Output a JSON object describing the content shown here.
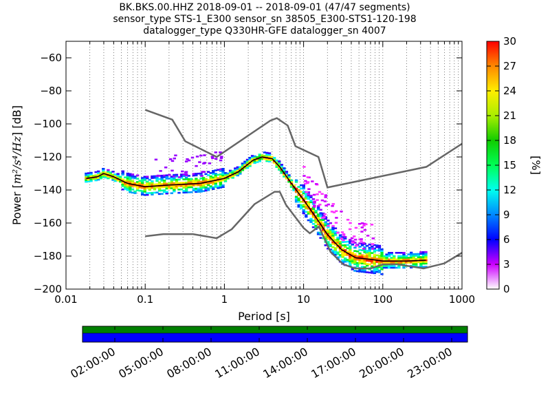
{
  "title_lines": [
    "BK.BKS.00.HHZ   2018-09-01 -- 2018-09-01  (47/47 segments)",
    "sensor_type STS-1_E300 sensor_sn 38505_E300-STS1-120-198",
    "datalogger_type Q330HR-GFE datalogger_sn 4007"
  ],
  "chart_data": {
    "type": "heatmap",
    "xlabel": "Period [s]",
    "ylabel": "Power [m²/s⁴/Hz] [dB]",
    "ylabel_parts": {
      "prefix": "Power [",
      "unit": "m²/s⁴/Hz",
      "suffix": "] [dB]"
    },
    "x_scale": "log",
    "xlim": [
      0.01,
      1000
    ],
    "ylim": [
      -200,
      -50
    ],
    "x_ticks": [
      {
        "value": 0.01,
        "label": "0.01"
      },
      {
        "value": 0.1,
        "label": "0.1"
      },
      {
        "value": 1,
        "label": "1"
      },
      {
        "value": 10,
        "label": "10"
      },
      {
        "value": 100,
        "label": "100"
      },
      {
        "value": 1000,
        "label": "1000"
      }
    ],
    "y_ticks": [
      {
        "value": -200,
        "label": "−200"
      },
      {
        "value": -180,
        "label": "−180"
      },
      {
        "value": -160,
        "label": "−160"
      },
      {
        "value": -140,
        "label": "−140"
      },
      {
        "value": -120,
        "label": "−120"
      },
      {
        "value": -100,
        "label": "−100"
      },
      {
        "value": -80,
        "label": "−80"
      },
      {
        "value": -60,
        "label": "−60"
      }
    ],
    "grid": "dotted vertical lines at log-decade subdivisions",
    "noise_models": {
      "color": "#666666",
      "high": [
        [
          0.1,
          -91.5
        ],
        [
          0.22,
          -97.4
        ],
        [
          0.32,
          -110.5
        ],
        [
          0.8,
          -120
        ],
        [
          3.8,
          -98
        ],
        [
          4.6,
          -96.5
        ],
        [
          6.3,
          -101
        ],
        [
          7.9,
          -113.5
        ],
        [
          15.4,
          -120
        ],
        [
          20,
          -138.5
        ],
        [
          354.8,
          -126
        ],
        [
          1000,
          -112
        ]
      ],
      "low": [
        [
          0.1,
          -168
        ],
        [
          0.17,
          -166.7
        ],
        [
          0.4,
          -166.7
        ],
        [
          0.8,
          -169.2
        ],
        [
          1.24,
          -163.7
        ],
        [
          2.4,
          -148.6
        ],
        [
          4.3,
          -141.1
        ],
        [
          5,
          -141.1
        ],
        [
          6,
          -149
        ],
        [
          10,
          -163
        ],
        [
          12,
          -166.2
        ],
        [
          15.6,
          -162.1
        ],
        [
          21.9,
          -177.5
        ],
        [
          31.6,
          -185
        ],
        [
          45,
          -187.5
        ],
        [
          70,
          -187.5
        ],
        [
          101,
          -185
        ],
        [
          154,
          -185
        ],
        [
          328,
          -187.5
        ],
        [
          600,
          -184.4
        ],
        [
          1000,
          -178
        ]
      ]
    },
    "median_line": {
      "color": "#000000",
      "points": [
        [
          0.018,
          -133
        ],
        [
          0.025,
          -132
        ],
        [
          0.03,
          -130
        ],
        [
          0.04,
          -132
        ],
        [
          0.06,
          -136
        ],
        [
          0.1,
          -138
        ],
        [
          0.2,
          -137
        ],
        [
          0.5,
          -136
        ],
        [
          1,
          -133
        ],
        [
          1.5,
          -129
        ],
        [
          2.3,
          -122
        ],
        [
          3,
          -120
        ],
        [
          4,
          -121
        ],
        [
          5,
          -126
        ],
        [
          7,
          -136
        ],
        [
          10,
          -146
        ],
        [
          15,
          -158
        ],
        [
          20,
          -167
        ],
        [
          30,
          -176
        ],
        [
          45,
          -181
        ],
        [
          70,
          -182
        ],
        [
          100,
          -183
        ],
        [
          200,
          -183
        ],
        [
          350,
          -182.5
        ]
      ]
    },
    "colorbar": {
      "label": "[%]",
      "ticks": [
        "0",
        "3",
        "6",
        "9",
        "12",
        "15",
        "18",
        "21",
        "24",
        "27",
        "30"
      ],
      "range": [
        0,
        30
      ]
    },
    "time_axis": {
      "ticks": [
        "02:00:00",
        "05:00:00",
        "08:00:00",
        "11:00:00",
        "14:00:00",
        "17:00:00",
        "20:00:00",
        "23:00:00"
      ],
      "bar_colors": [
        "#008000",
        "#0000ff"
      ]
    }
  }
}
